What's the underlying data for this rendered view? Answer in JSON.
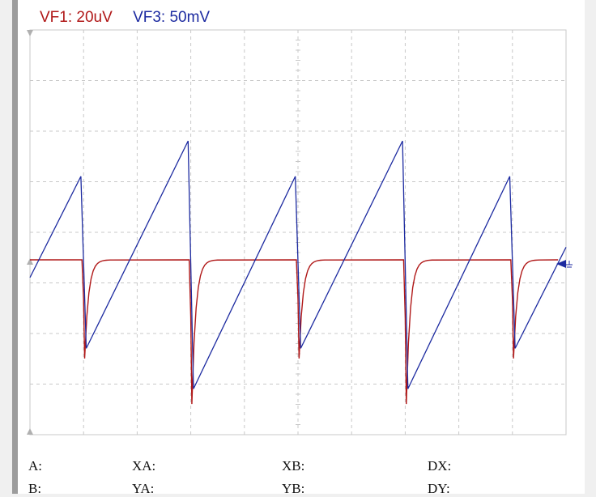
{
  "channels": {
    "ch1": {
      "label": "VF1: 20uV",
      "color": "#b01818"
    },
    "ch3": {
      "label": "VF3: 50mV",
      "color": "#1c2aa0"
    }
  },
  "grid": {
    "divisions_x": 10,
    "divisions_y": 8,
    "style": "dashed",
    "color": "#c8c8c8"
  },
  "waveforms": {
    "ch1_red": {
      "description_type": "baseline with negative spikes",
      "baseline_div": 0.0,
      "spike_positions_div": [
        1.0,
        3.0,
        5.0,
        7.0,
        9.0
      ],
      "spike_depths_div": [
        -1.95,
        -2.85,
        -1.95,
        -2.85,
        -1.95
      ]
    },
    "ch3_blue": {
      "description_type": "sawtooth ramps",
      "peaks": [
        {
          "t_div": 0.95,
          "v_div": 1.65
        },
        {
          "t_div": 2.95,
          "v_div": 2.35
        },
        {
          "t_div": 4.95,
          "v_div": 1.65
        },
        {
          "t_div": 6.95,
          "v_div": 2.35
        },
        {
          "t_div": 8.95,
          "v_div": 1.65
        }
      ],
      "troughs": [
        {
          "t_div": 1.05,
          "v_div": -1.75
        },
        {
          "t_div": 3.05,
          "v_div": -2.55
        },
        {
          "t_div": 5.05,
          "v_div": -1.75
        },
        {
          "t_div": 7.05,
          "v_div": -2.55
        },
        {
          "t_div": 9.05,
          "v_div": -1.75
        }
      ],
      "start": {
        "t_div": 0.0,
        "v_div": -0.35
      },
      "end": {
        "t_div": 10.0,
        "v_div": 0.25
      }
    }
  },
  "markers": {
    "trigger_level_icon": "trigger-arrow-icon",
    "ground_icon": "ground-icon"
  },
  "cursors": {
    "row1": {
      "a": "A:",
      "xa": "XA:",
      "xb": "XB:",
      "dx": "DX:"
    },
    "row2": {
      "b": "B:",
      "ya": "YA:",
      "yb": "YB:",
      "dy": "DY:"
    }
  }
}
